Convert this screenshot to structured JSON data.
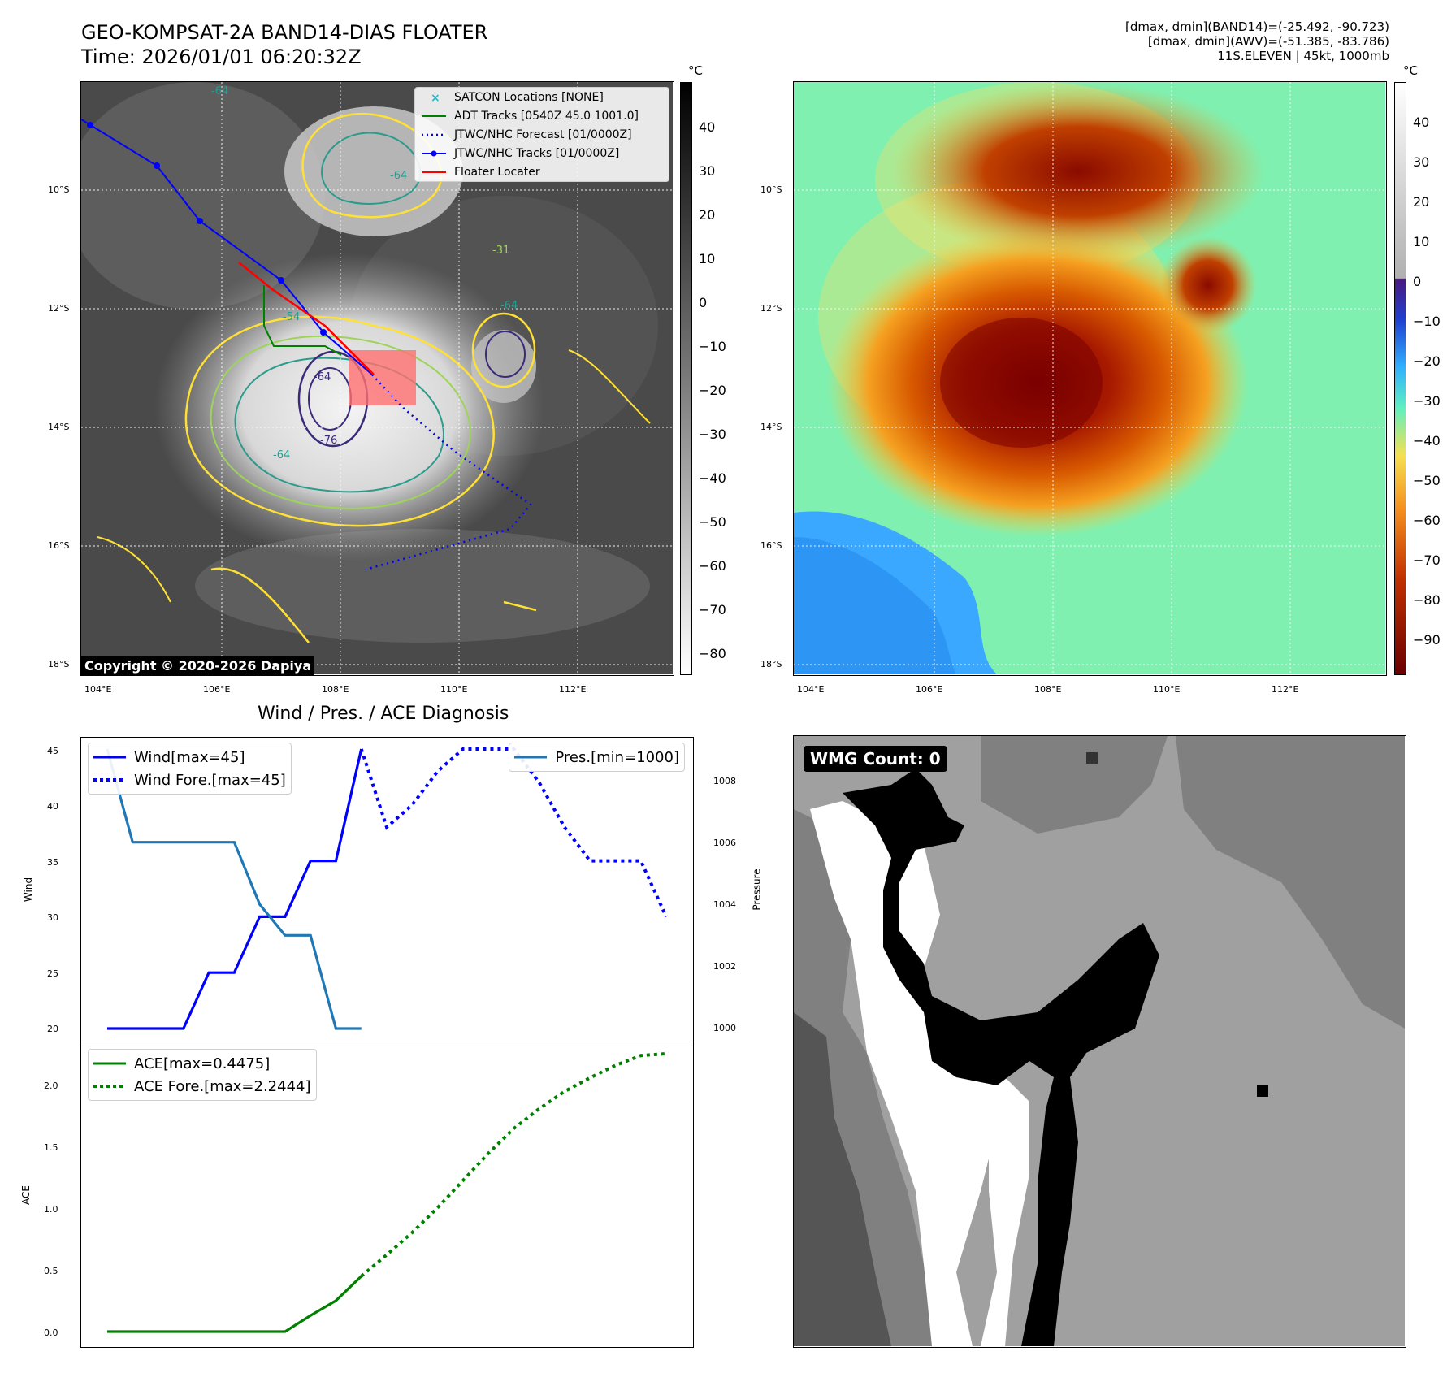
{
  "header": {
    "title_line1": "GEO-KOMPSAT-2A BAND14-DIAS FLOATER",
    "title_line2": "Time: 2026/01/01 06:20:32Z",
    "info_line1": "[dmax, dmin](BAND14)=(-25.492, -90.723)",
    "info_line2": "[dmax, dmin](AWV)=(-51.385, -83.786)",
    "info_line3": "11S.ELEVEN | 45kt, 1000mb"
  },
  "map": {
    "lon_ticks": [
      "104°E",
      "106°E",
      "108°E",
      "110°E",
      "112°E"
    ],
    "lat_ticks": [
      "10°S",
      "12°S",
      "14°S",
      "16°S",
      "18°S"
    ],
    "copyright": "Copyright © 2020-2026 Dapiya",
    "contour_labels": [
      "-64",
      "-64",
      "-31",
      "-64",
      "-54",
      "-64",
      "-76",
      "-64"
    ],
    "legend": [
      {
        "label": "SATCON Locations [NONE]",
        "color": "#17becf"
      },
      {
        "label": "ADT Tracks [0540Z 45.0 1001.0]",
        "color": "#008000"
      },
      {
        "label": "JTWC/NHC Forecast [01/0000Z]",
        "color": "#0000ff"
      },
      {
        "label": "JTWC/NHC Tracks [01/0000Z]",
        "color": "#0000ff"
      },
      {
        "label": "Floater Locater",
        "color": "#ff0000"
      }
    ]
  },
  "colorbars": {
    "unit": "°C",
    "gray_ticks": [
      "40",
      "30",
      "20",
      "10",
      "0",
      "−10",
      "−20",
      "−30",
      "−40",
      "−50",
      "−60",
      "−70",
      "−80"
    ],
    "color_ticks": [
      "40",
      "30",
      "20",
      "10",
      "0",
      "−10",
      "−20",
      "−30",
      "−40",
      "−50",
      "−60",
      "−70",
      "−80",
      "−90"
    ]
  },
  "diagnosis": {
    "title": "Wind / Pres. / ACE Diagnosis",
    "wind_ylabel": "Wind",
    "pres_ylabel": "Pressure",
    "ace_ylabel": "ACE",
    "legend_wind": "Wind[max=45]",
    "legend_wind_fore": "Wind Fore.[max=45]",
    "legend_pres": "Pres.[min=1000]",
    "legend_ace": "ACE[max=0.4475]",
    "legend_ace_fore": "ACE Fore.[max=2.2444]",
    "wind_ticks": [
      "45",
      "40",
      "35",
      "30",
      "25",
      "20"
    ],
    "pres_ticks": [
      "1008",
      "1006",
      "1004",
      "1002",
      "1000"
    ],
    "ace_ticks": [
      "2.0",
      "1.5",
      "1.0",
      "0.5",
      "0.0"
    ]
  },
  "wmg": {
    "label": "WMG Count: 0"
  },
  "chart_data": [
    {
      "type": "line",
      "title": "Wind / Pres. / ACE Diagnosis",
      "ylabel": "Wind",
      "ylim": [
        19,
        46
      ],
      "series": [
        {
          "name": "Wind[max=45]",
          "color": "#0000ff",
          "style": "solid",
          "x": [
            0,
            1,
            2,
            3,
            4,
            5,
            6,
            7,
            8,
            9,
            10
          ],
          "values": [
            20,
            20,
            20,
            20,
            25,
            25,
            30,
            30,
            35,
            35,
            45
          ]
        },
        {
          "name": "Wind Fore.[max=45]",
          "color": "#0000ff",
          "style": "dotted",
          "x": [
            10,
            11,
            12,
            13,
            14,
            15,
            16,
            17,
            18,
            19,
            20,
            21,
            22
          ],
          "values": [
            45,
            38,
            40,
            43,
            45,
            45,
            45,
            42,
            38,
            35,
            35,
            35,
            30
          ]
        }
      ]
    },
    {
      "type": "line",
      "ylabel": "Pressure",
      "ylim": [
        999.5,
        1009.5
      ],
      "series": [
        {
          "name": "Pres.[min=1000]",
          "color": "#1f77b4",
          "style": "solid",
          "x": [
            0,
            1,
            2,
            3,
            4,
            5,
            6,
            7,
            8,
            9,
            10
          ],
          "values": [
            1009,
            1006,
            1006,
            1006,
            1006,
            1006,
            1004,
            1003,
            1003,
            1000,
            1000
          ]
        }
      ]
    },
    {
      "type": "line",
      "ylabel": "ACE",
      "ylim": [
        -0.07,
        2.3
      ],
      "series": [
        {
          "name": "ACE[max=0.4475]",
          "color": "#008000",
          "style": "solid",
          "x": [
            0,
            1,
            2,
            3,
            4,
            5,
            6,
            7,
            8,
            9,
            10
          ],
          "values": [
            0,
            0,
            0,
            0,
            0,
            0,
            0,
            0,
            0.13,
            0.25,
            0.4475
          ]
        },
        {
          "name": "ACE Fore.[max=2.2444]",
          "color": "#008000",
          "style": "dotted",
          "x": [
            10,
            11,
            12,
            13,
            14,
            15,
            16,
            17,
            18,
            19,
            20,
            21,
            22
          ],
          "values": [
            0.4475,
            0.62,
            0.8,
            1.0,
            1.22,
            1.44,
            1.64,
            1.8,
            1.94,
            2.05,
            2.15,
            2.23,
            2.2444
          ]
        }
      ]
    }
  ]
}
